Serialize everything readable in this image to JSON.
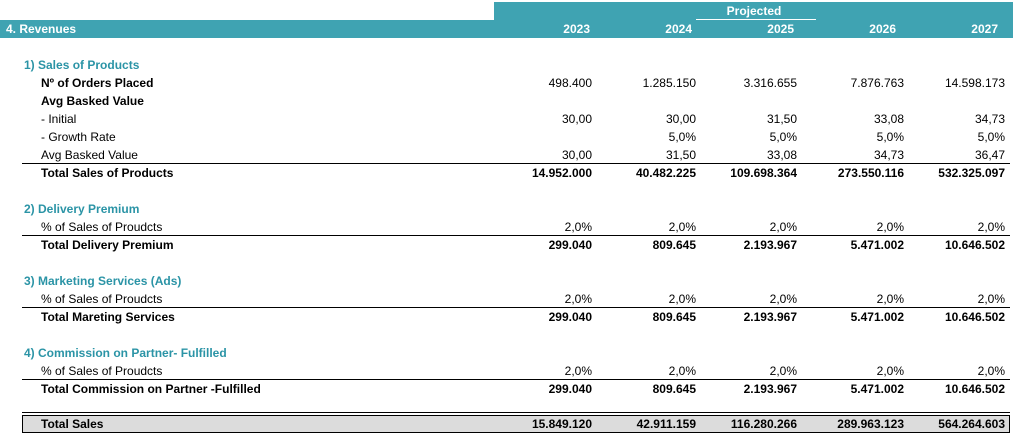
{
  "header": {
    "title": "4.  Revenues",
    "projected": "Projected",
    "years": [
      "2023",
      "2024",
      "2025",
      "2026",
      "2027"
    ]
  },
  "sections": {
    "s1": {
      "title": "1) Sales of Products",
      "orders_label": "Nº of Orders Placed",
      "orders": [
        "498.400",
        "1.285.150",
        "3.316.655",
        "7.876.763",
        "14.598.173"
      ],
      "avg_header": "Avg Basked Value",
      "initial_label": " - Initial",
      "initial": [
        "30,00",
        "30,00",
        "31,50",
        "33,08",
        "34,73"
      ],
      "growth_label": " - Growth Rate",
      "growth": [
        "",
        "5,0%",
        "5,0%",
        "5,0%",
        "5,0%"
      ],
      "avg_label": "Avg Basked Value",
      "avg": [
        "30,00",
        "31,50",
        "33,08",
        "34,73",
        "36,47"
      ],
      "total_label": "Total Sales of Products",
      "total": [
        "14.952.000",
        "40.482.225",
        "109.698.364",
        "273.550.116",
        "532.325.097"
      ]
    },
    "s2": {
      "title": "2) Delivery Premium",
      "pct_label": "% of Sales of Proudcts",
      "pct": [
        "2,0%",
        "2,0%",
        "2,0%",
        "2,0%",
        "2,0%"
      ],
      "total_label": "Total Delivery Premium",
      "total": [
        "299.040",
        "809.645",
        "2.193.967",
        "5.471.002",
        "10.646.502"
      ]
    },
    "s3": {
      "title": "3) Marketing Services (Ads)",
      "pct_label": "% of Sales of Proudcts",
      "pct": [
        "2,0%",
        "2,0%",
        "2,0%",
        "2,0%",
        "2,0%"
      ],
      "total_label": "Total Mareting Services",
      "total": [
        "299.040",
        "809.645",
        "2.193.967",
        "5.471.002",
        "10.646.502"
      ]
    },
    "s4": {
      "title": "4) Commission on Partner- Fulfilled",
      "pct_label": "% of Sales of Proudcts",
      "pct": [
        "2,0%",
        "2,0%",
        "2,0%",
        "2,0%",
        "2,0%"
      ],
      "total_label": "Total Commission on Partner -Fulfilled",
      "total": [
        "299.040",
        "809.645",
        "2.193.967",
        "5.471.002",
        "10.646.502"
      ]
    }
  },
  "grand_total": {
    "label": "Total Sales",
    "values": [
      "15.849.120",
      "42.911.159",
      "116.280.266",
      "289.963.123",
      "564.264.603"
    ]
  },
  "colors": {
    "header_band": "#3fa3b2",
    "section_title": "#2b94a6",
    "total_fill": "#dcdcdc"
  }
}
